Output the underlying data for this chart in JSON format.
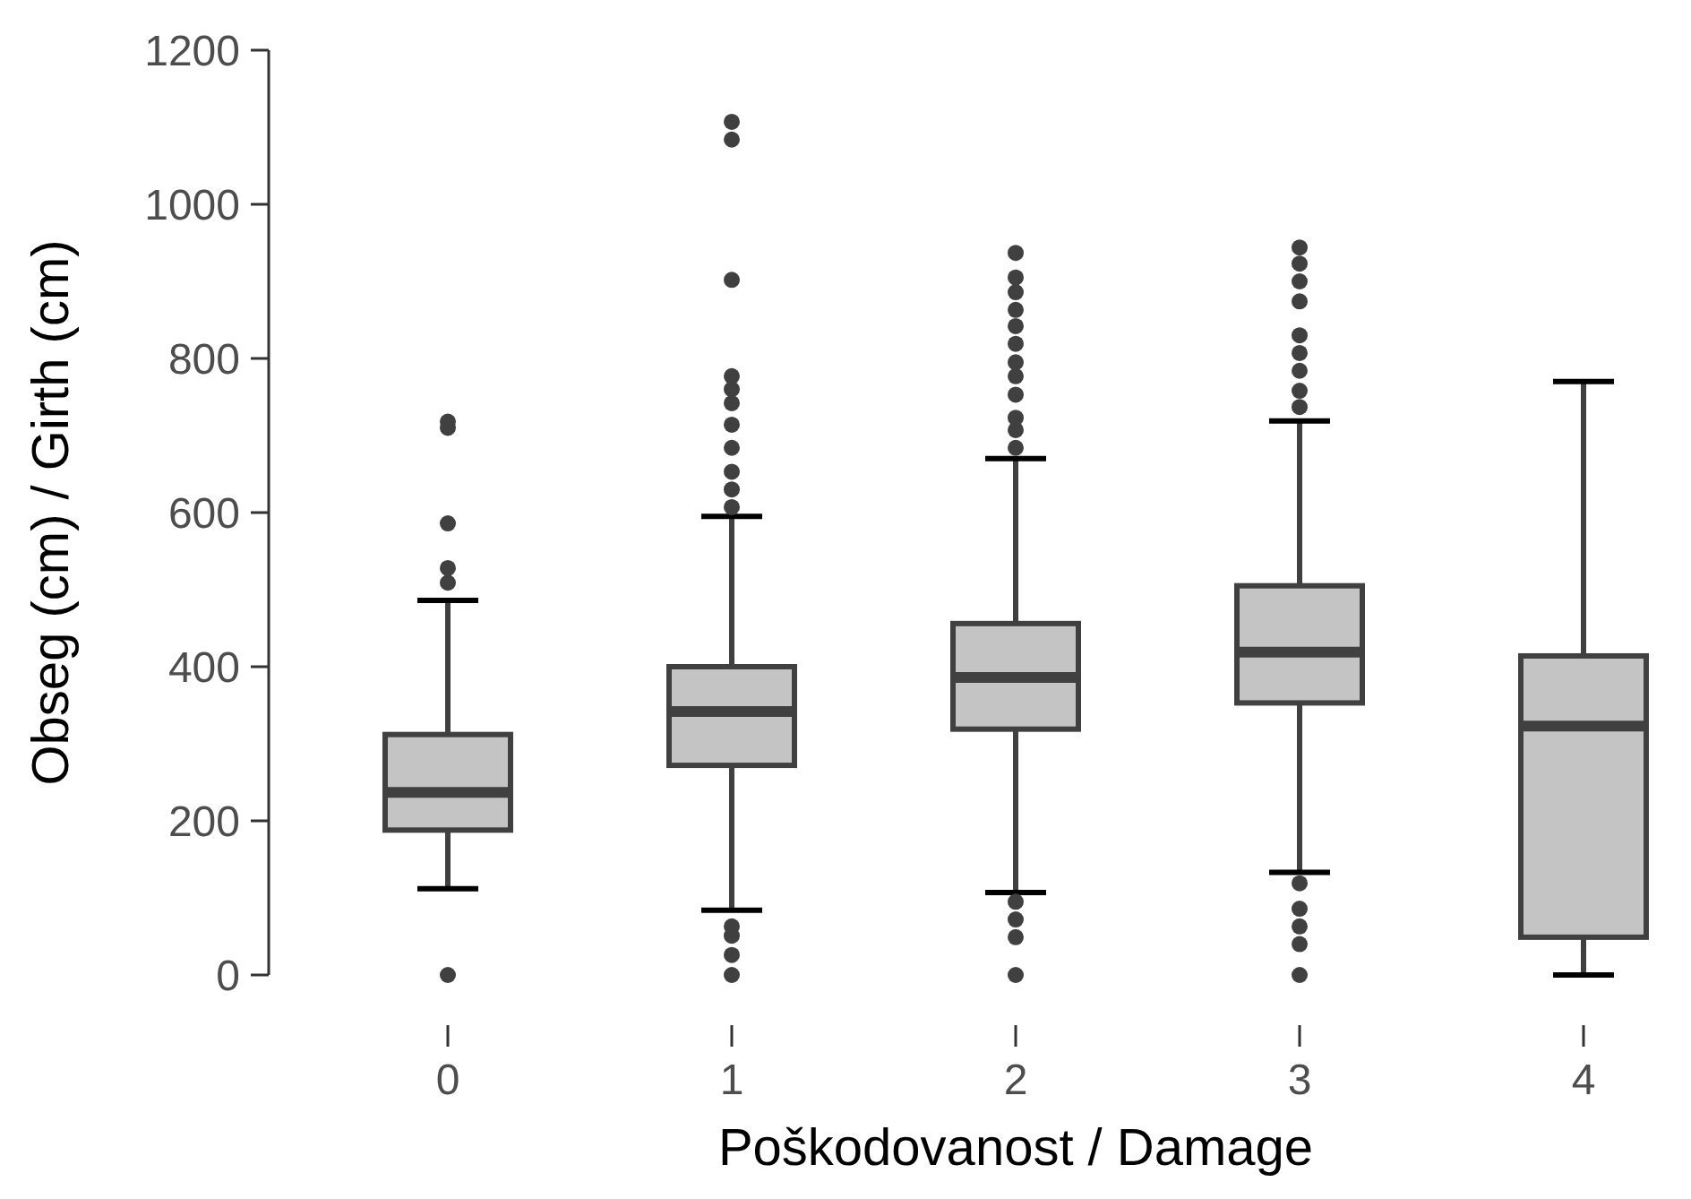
{
  "chart_data": {
    "type": "box",
    "xlabel": "Poškodovanost / Damage",
    "ylabel": "Obseg (cm) / Girth (cm)",
    "categories": [
      "0",
      "1",
      "2",
      "3",
      "4"
    ],
    "color": "#c4c4c4",
    "ylim": [
      0,
      1200
    ],
    "yticks": [
      0,
      200,
      400,
      600,
      800,
      1000,
      1200
    ],
    "boxes": [
      {
        "low": 112,
        "q1": 188,
        "median": 237,
        "q3": 312,
        "high": 486,
        "outliers": [
          0,
          509,
          528,
          586,
          710,
          718
        ]
      },
      {
        "low": 84,
        "q1": 272,
        "median": 342,
        "q3": 400,
        "high": 595,
        "outliers": [
          0,
          26,
          51,
          63,
          607,
          630,
          653,
          684,
          714,
          742,
          760,
          777,
          902,
          1084,
          1107
        ]
      },
      {
        "low": 107,
        "q1": 319,
        "median": 386,
        "q3": 456,
        "high": 670,
        "outliers": [
          0,
          49,
          72,
          95,
          684,
          707,
          723,
          753,
          777,
          795,
          819,
          842,
          863,
          886,
          905,
          937
        ]
      },
      {
        "low": 133,
        "q1": 353,
        "median": 419,
        "q3": 505,
        "high": 719,
        "outliers": [
          0,
          40,
          63,
          86,
          119,
          737,
          758,
          784,
          807,
          830,
          874,
          900,
          923,
          944
        ]
      },
      {
        "low": 0,
        "q1": 49,
        "median": 323,
        "q3": 414,
        "high": 770
      }
    ]
  }
}
